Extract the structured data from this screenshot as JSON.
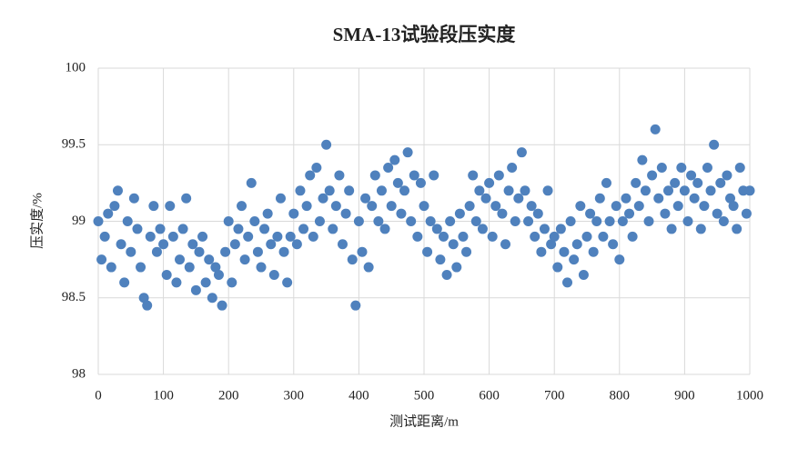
{
  "chart_data": {
    "type": "scatter",
    "title": "SMA-13试验段压实度",
    "xlabel": "测试距离/m",
    "ylabel": "压实度/%",
    "color": "#4f81bd",
    "grid": true,
    "xlim": [
      0,
      1000
    ],
    "xticks": [
      0,
      100,
      200,
      300,
      400,
      500,
      600,
      700,
      800,
      900,
      1000
    ],
    "ylim": [
      98,
      100
    ],
    "yticks": [
      98,
      98.5,
      99,
      99.5,
      100
    ],
    "x": [
      0,
      5,
      10,
      15,
      20,
      25,
      30,
      35,
      40,
      45,
      50,
      55,
      60,
      65,
      70,
      75,
      80,
      85,
      90,
      95,
      100,
      105,
      110,
      115,
      120,
      125,
      130,
      135,
      140,
      145,
      150,
      155,
      160,
      165,
      170,
      175,
      180,
      185,
      190,
      195,
      200,
      205,
      210,
      215,
      220,
      225,
      230,
      235,
      240,
      245,
      250,
      255,
      260,
      265,
      270,
      275,
      280,
      285,
      290,
      295,
      300,
      305,
      310,
      315,
      320,
      325,
      330,
      335,
      340,
      345,
      350,
      355,
      360,
      365,
      370,
      375,
      380,
      385,
      390,
      395,
      400,
      405,
      410,
      415,
      420,
      425,
      430,
      435,
      440,
      445,
      450,
      455,
      460,
      465,
      470,
      475,
      480,
      485,
      490,
      495,
      500,
      505,
      510,
      515,
      520,
      525,
      530,
      535,
      540,
      545,
      550,
      555,
      560,
      565,
      570,
      575,
      580,
      585,
      590,
      595,
      600,
      605,
      610,
      615,
      620,
      625,
      630,
      635,
      640,
      645,
      650,
      655,
      660,
      665,
      670,
      675,
      680,
      685,
      690,
      695,
      700,
      705,
      710,
      715,
      720,
      725,
      730,
      735,
      740,
      745,
      750,
      755,
      760,
      765,
      770,
      775,
      780,
      785,
      790,
      795,
      800,
      805,
      810,
      815,
      820,
      825,
      830,
      835,
      840,
      845,
      850,
      855,
      860,
      865,
      870,
      875,
      880,
      885,
      890,
      895,
      900,
      905,
      910,
      915,
      920,
      925,
      930,
      935,
      940,
      945,
      950,
      955,
      960,
      965,
      970,
      975,
      980,
      985,
      990,
      995,
      1000
    ],
    "values": [
      99.0,
      98.75,
      98.9,
      99.05,
      98.7,
      99.1,
      99.2,
      98.85,
      98.6,
      99.0,
      98.8,
      99.15,
      98.95,
      98.7,
      98.5,
      98.45,
      98.9,
      99.1,
      98.8,
      98.95,
      98.85,
      98.65,
      99.1,
      98.9,
      98.6,
      98.75,
      98.95,
      99.15,
      98.7,
      98.85,
      98.55,
      98.8,
      98.9,
      98.6,
      98.75,
      98.5,
      98.7,
      98.65,
      98.45,
      98.8,
      99.0,
      98.6,
      98.85,
      98.95,
      99.1,
      98.75,
      98.9,
      99.25,
      99.0,
      98.8,
      98.7,
      98.95,
      99.05,
      98.85,
      98.65,
      98.9,
      99.15,
      98.8,
      98.6,
      98.9,
      99.05,
      98.85,
      99.2,
      98.95,
      99.1,
      99.3,
      98.9,
      99.35,
      99.0,
      99.15,
      99.5,
      99.2,
      98.95,
      99.1,
      99.3,
      98.85,
      99.05,
      99.2,
      98.75,
      98.45,
      99.0,
      98.8,
      99.15,
      98.7,
      99.1,
      99.3,
      99.0,
      99.2,
      98.95,
      99.35,
      99.1,
      99.4,
      99.25,
      99.05,
      99.2,
      99.45,
      99.0,
      99.3,
      98.9,
      99.25,
      99.1,
      98.8,
      99.0,
      99.3,
      98.95,
      98.75,
      98.9,
      98.65,
      99.0,
      98.85,
      98.7,
      99.05,
      98.9,
      98.8,
      99.1,
      99.3,
      99.0,
      99.2,
      98.95,
      99.15,
      99.25,
      98.9,
      99.1,
      99.3,
      99.05,
      98.85,
      99.2,
      99.35,
      99.0,
      99.15,
      99.45,
      99.2,
      99.0,
      99.1,
      98.9,
      99.05,
      98.8,
      98.95,
      99.2,
      98.85,
      98.9,
      98.7,
      98.95,
      98.8,
      98.6,
      99.0,
      98.75,
      98.85,
      99.1,
      98.65,
      98.9,
      99.05,
      98.8,
      99.0,
      99.15,
      98.9,
      99.25,
      99.0,
      98.85,
      99.1,
      98.75,
      99.0,
      99.15,
      99.05,
      98.9,
      99.25,
      99.1,
      99.4,
      99.2,
      99.0,
      99.3,
      99.6,
      99.15,
      99.35,
      99.05,
      99.2,
      98.95,
      99.25,
      99.1,
      99.35,
      99.2,
      99.0,
      99.3,
      99.15,
      99.25,
      98.95,
      99.1,
      99.35,
      99.2,
      99.5,
      99.05,
      99.25,
      99.0,
      99.3,
      99.15,
      99.1,
      98.95,
      99.35,
      99.2,
      99.05,
      99.2
    ]
  }
}
